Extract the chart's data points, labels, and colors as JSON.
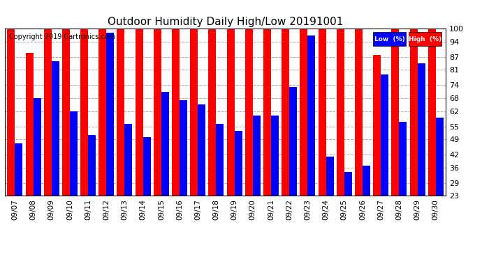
{
  "title": "Outdoor Humidity Daily High/Low 20191001",
  "copyright": "Copyright 2019 Cartronics.com",
  "dates": [
    "09/07",
    "09/08",
    "09/09",
    "09/10",
    "09/11",
    "09/12",
    "09/13",
    "09/14",
    "09/15",
    "09/16",
    "09/17",
    "09/18",
    "09/19",
    "09/20",
    "09/21",
    "09/22",
    "09/23",
    "09/24",
    "09/25",
    "09/26",
    "09/27",
    "09/28",
    "09/29",
    "09/30"
  ],
  "high": [
    100,
    89,
    100,
    100,
    100,
    100,
    100,
    100,
    100,
    100,
    100,
    100,
    100,
    100,
    100,
    100,
    100,
    100,
    100,
    100,
    88,
    100,
    100,
    100
  ],
  "low": [
    47,
    68,
    85,
    62,
    51,
    98,
    56,
    50,
    71,
    67,
    65,
    56,
    53,
    60,
    60,
    73,
    97,
    41,
    34,
    37,
    79,
    57,
    84,
    59
  ],
  "ylim_min": 23,
  "ylim_max": 100,
  "yticks": [
    23,
    29,
    36,
    42,
    49,
    55,
    62,
    68,
    74,
    81,
    87,
    94,
    100
  ],
  "bar_color_high": "#ff0000",
  "bar_color_low": "#0000ff",
  "background_color": "#ffffff",
  "grid_color": "#aaaaaa",
  "title_fontsize": 11,
  "copyright_fontsize": 7,
  "legend_low_label": "Low  (%)",
  "legend_high_label": "High  (%)"
}
